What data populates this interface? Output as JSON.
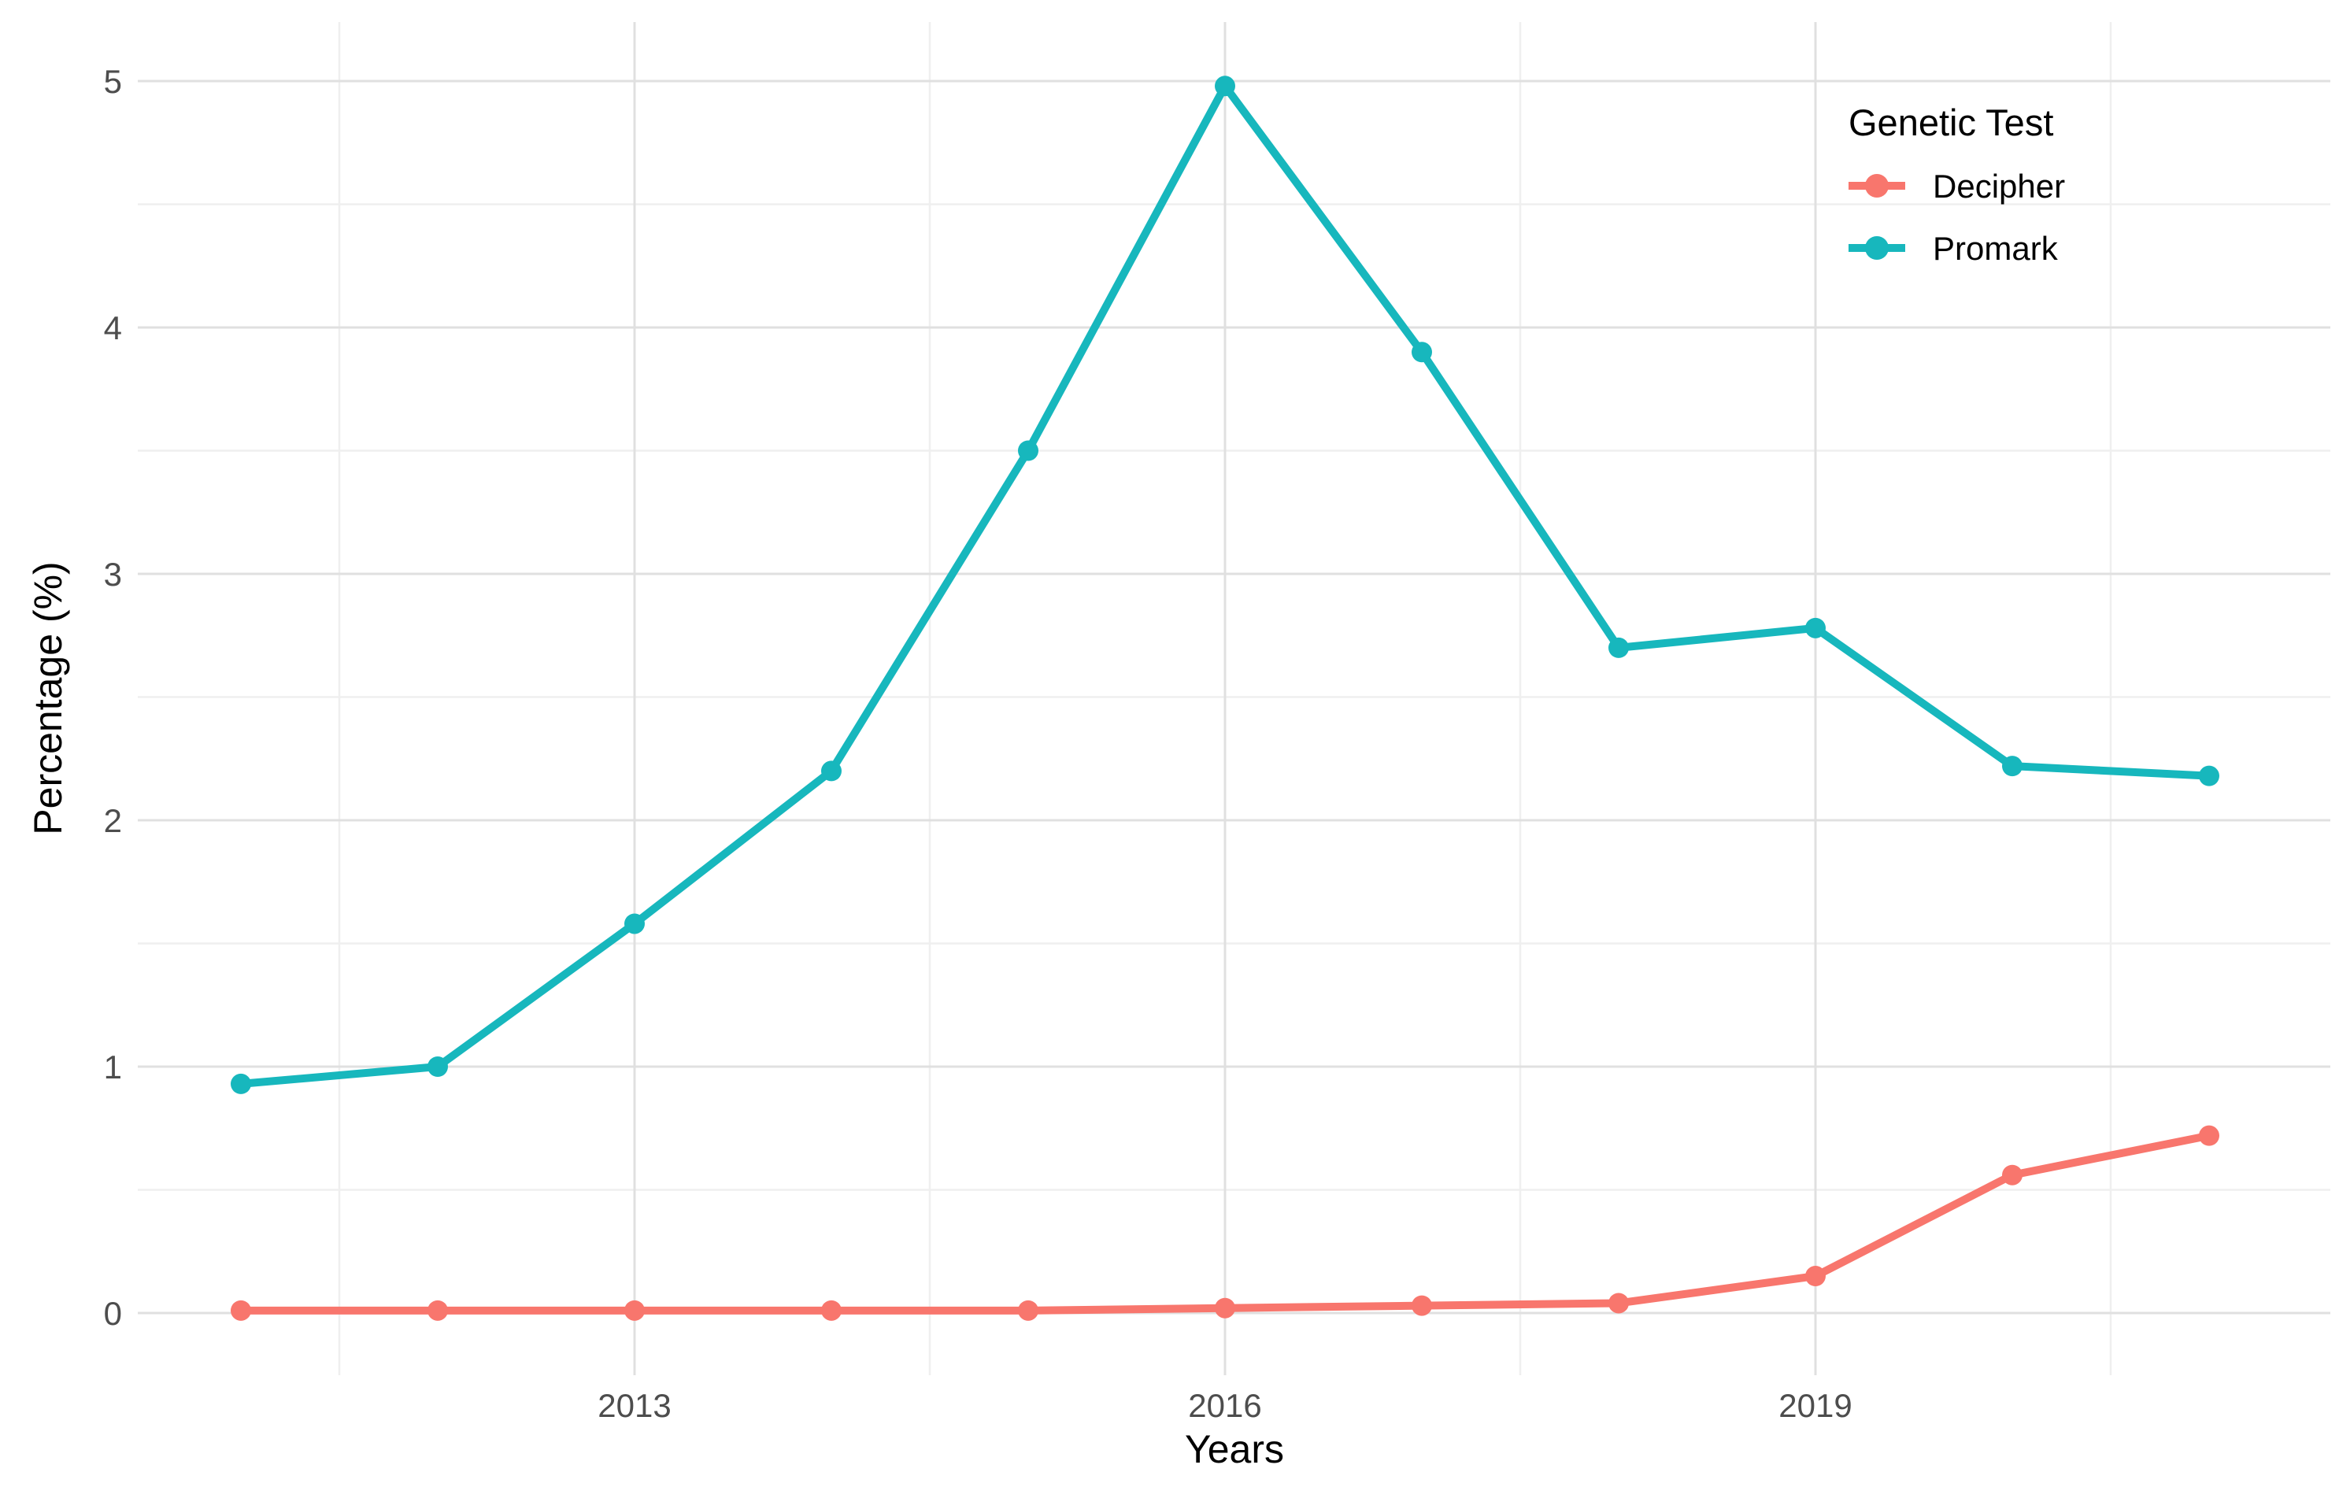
{
  "chart_data": {
    "type": "line",
    "title": "",
    "xlabel": "Years",
    "ylabel": "Percentage (%)",
    "legend_title": "Genetic Test",
    "x": [
      2011,
      2012,
      2013,
      2014,
      2015,
      2016,
      2017,
      2018,
      2019,
      2020,
      2021
    ],
    "x_ticks": [
      2013,
      2016,
      2019
    ],
    "y_ticks": [
      0,
      1,
      2,
      3,
      4,
      5
    ],
    "xlim": [
      2011,
      2021
    ],
    "ylim": [
      0,
      5
    ],
    "grid": "major and minor gridlines, light gray on white, no axis lines",
    "legend_position": "inside top-right",
    "series": [
      {
        "name": "Decipher",
        "color": "#F8766D",
        "values": [
          0.01,
          0.01,
          0.01,
          0.01,
          0.01,
          0.02,
          0.03,
          0.04,
          0.15,
          0.56,
          0.72
        ]
      },
      {
        "name": "Promark",
        "color": "#17B7BD",
        "values": [
          0.93,
          1.0,
          1.58,
          2.2,
          3.5,
          4.98,
          3.9,
          2.7,
          2.78,
          2.22,
          2.18
        ]
      }
    ]
  },
  "colors": {
    "background": "#FFFFFF",
    "grid_major": "#E0E0E0",
    "grid_minor": "#EFEFEF",
    "tick_label": "#4D4D4D",
    "axis_title": "#000000",
    "legend_text": "#000000"
  }
}
